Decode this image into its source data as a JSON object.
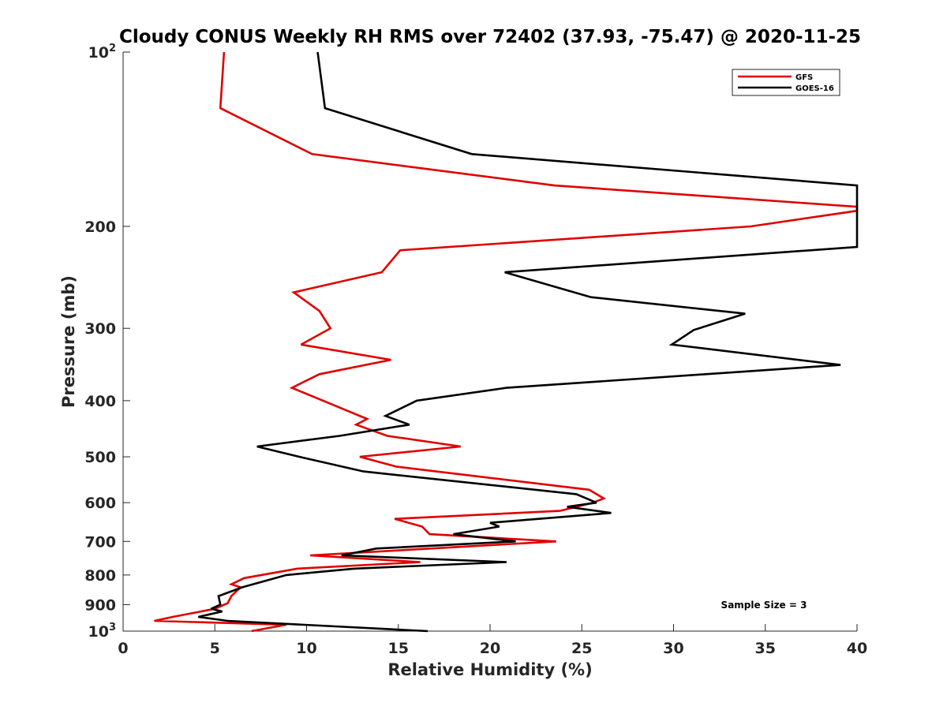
{
  "chart_data": {
    "type": "line",
    "title": "Cloudy CONUS Weekly RH RMS over 72402 (37.93, -75.47) @ 2020-11-25",
    "xlabel": "Relative Humidity (%)",
    "ylabel": "Pressure (mb)",
    "xlim": [
      0,
      40
    ],
    "ylim": [
      100,
      1000
    ],
    "y_scale": "log",
    "y_reversed": true,
    "grid": false,
    "legend_position": "top-right",
    "x_ticks": [
      0,
      5,
      10,
      15,
      20,
      25,
      30,
      35,
      40
    ],
    "y_ticks": [
      {
        "value": 100,
        "base": "10",
        "exp": "2"
      },
      {
        "value": 200,
        "label": "200"
      },
      {
        "value": 300,
        "label": "300"
      },
      {
        "value": 400,
        "label": "400"
      },
      {
        "value": 500,
        "label": "500"
      },
      {
        "value": 600,
        "label": "600"
      },
      {
        "value": 700,
        "label": "700"
      },
      {
        "value": 800,
        "label": "800"
      },
      {
        "value": 900,
        "label": "900"
      },
      {
        "value": 1000,
        "base": "10",
        "exp": "3"
      }
    ],
    "annotation": "Sample Size = 3",
    "series": [
      {
        "name": "GFS",
        "color": "#e00000",
        "points": [
          [
            5.5,
            100
          ],
          [
            5.3,
            125
          ],
          [
            10.3,
            150
          ],
          [
            23.5,
            170
          ],
          [
            40,
            185
          ],
          [
            40,
            188
          ],
          [
            34.2,
            200
          ],
          [
            15.1,
            220
          ],
          [
            14.1,
            240
          ],
          [
            9.3,
            260
          ],
          [
            10.7,
            280
          ],
          [
            11.3,
            300
          ],
          [
            9.7,
            320
          ],
          [
            14.6,
            340
          ],
          [
            10.7,
            360
          ],
          [
            9.2,
            380
          ],
          [
            13.3,
            430
          ],
          [
            12.7,
            440
          ],
          [
            14.4,
            460
          ],
          [
            18.4,
            480
          ],
          [
            12.9,
            500
          ],
          [
            14.9,
            520
          ],
          [
            25.4,
            570
          ],
          [
            26.2,
            590
          ],
          [
            25.6,
            600
          ],
          [
            23.8,
            620
          ],
          [
            14.8,
            640
          ],
          [
            16.3,
            660
          ],
          [
            16.7,
            680
          ],
          [
            23.6,
            700
          ],
          [
            10.2,
            740
          ],
          [
            16.2,
            760
          ],
          [
            9.5,
            780
          ],
          [
            6.6,
            810
          ],
          [
            5.9,
            830
          ],
          [
            6.4,
            840
          ],
          [
            5.9,
            870
          ],
          [
            5.7,
            895
          ],
          [
            5.0,
            915
          ],
          [
            2.7,
            945
          ],
          [
            1.7,
            960
          ],
          [
            8.9,
            975
          ],
          [
            7.0,
            1000
          ]
        ]
      },
      {
        "name": "GOES-16",
        "color": "#000000",
        "points": [
          [
            10.6,
            100
          ],
          [
            11.0,
            125
          ],
          [
            19.0,
            150
          ],
          [
            40,
            170
          ],
          [
            40,
            217
          ],
          [
            20.8,
            240
          ],
          [
            25.5,
            265
          ],
          [
            33.9,
            283
          ],
          [
            31.1,
            302
          ],
          [
            29.9,
            320
          ],
          [
            39.1,
            347
          ],
          [
            20.9,
            380
          ],
          [
            16.0,
            400
          ],
          [
            14.3,
            425
          ],
          [
            15.6,
            440
          ],
          [
            11.8,
            460
          ],
          [
            7.3,
            480
          ],
          [
            9.6,
            500
          ],
          [
            13.1,
            530
          ],
          [
            24.7,
            580
          ],
          [
            25.8,
            600
          ],
          [
            24.2,
            610
          ],
          [
            26.6,
            625
          ],
          [
            20.0,
            650
          ],
          [
            20.5,
            660
          ],
          [
            18.0,
            680
          ],
          [
            21.4,
            700
          ],
          [
            13.8,
            720
          ],
          [
            11.9,
            740
          ],
          [
            20.9,
            760
          ],
          [
            12.6,
            780
          ],
          [
            8.9,
            800
          ],
          [
            6.5,
            840
          ],
          [
            5.2,
            870
          ],
          [
            5.3,
            900
          ],
          [
            4.8,
            915
          ],
          [
            5.4,
            925
          ],
          [
            4.1,
            945
          ],
          [
            5.7,
            960
          ],
          [
            16.6,
            1000
          ]
        ]
      }
    ]
  }
}
